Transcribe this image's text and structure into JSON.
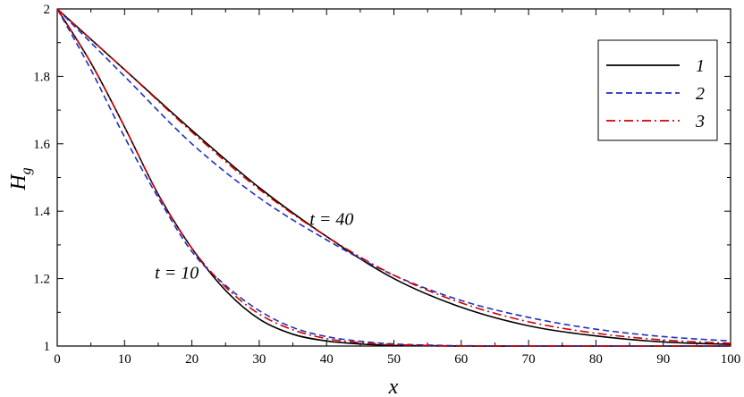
{
  "chart_data": {
    "type": "line",
    "xlabel": "x",
    "ylabel_main": "H",
    "ylabel_sub": "g",
    "xlim": [
      0,
      100
    ],
    "ylim": [
      1,
      2
    ],
    "xticks": [
      0,
      10,
      20,
      30,
      40,
      50,
      60,
      70,
      80,
      90,
      100
    ],
    "yticks": [
      1,
      1.2,
      1.4,
      1.6,
      1.8,
      2
    ],
    "ytick_labels": [
      "1",
      "1.2",
      "1.4",
      "1.6",
      "1.8",
      "2"
    ],
    "grid": false,
    "legend_position": "top-right",
    "colors": {
      "s1": "#000000",
      "s2": "#1f2fbf",
      "s3": "#d40000"
    },
    "legend": [
      {
        "label": "1",
        "style": "solid",
        "color": "#000000"
      },
      {
        "label": "2",
        "style": "dashed",
        "color": "#1f2fbf"
      },
      {
        "label": "3",
        "style": "dashdot",
        "color": "#d40000"
      }
    ],
    "annotations": [
      {
        "text": "t = 40",
        "x": 37.5,
        "y": 1.36
      },
      {
        "text": "t = 10",
        "x": 14.5,
        "y": 1.2
      }
    ],
    "series": [
      {
        "label": "1",
        "group": "t = 10",
        "x": [
          0,
          5,
          10,
          15,
          20,
          25,
          30,
          35,
          40,
          45,
          50,
          55,
          60,
          70,
          80,
          90,
          100
        ],
        "y": [
          2,
          1.84,
          1.65,
          1.45,
          1.29,
          1.165,
          1.08,
          1.035,
          1.015,
          1.006,
          1.002,
          1.001,
          1.0,
          1.0,
          1.0,
          1.0,
          1.0
        ]
      },
      {
        "label": "2",
        "group": "t = 10",
        "x": [
          0,
          5,
          10,
          15,
          20,
          25,
          30,
          35,
          40,
          45,
          50,
          55,
          60,
          70,
          80,
          90,
          100
        ],
        "y": [
          2,
          1.82,
          1.62,
          1.44,
          1.28,
          1.18,
          1.105,
          1.055,
          1.028,
          1.014,
          1.006,
          1.003,
          1.001,
          1.0,
          1.0,
          1.0,
          1.0
        ]
      },
      {
        "label": "3",
        "group": "t = 10",
        "x": [
          0,
          5,
          10,
          15,
          20,
          25,
          30,
          35,
          40,
          45,
          50,
          55,
          60,
          70,
          80,
          90,
          100
        ],
        "y": [
          2,
          1.84,
          1.65,
          1.45,
          1.29,
          1.175,
          1.095,
          1.048,
          1.022,
          1.01,
          1.004,
          1.002,
          1.0,
          1.0,
          1.0,
          1.0,
          1.0
        ]
      },
      {
        "label": "1",
        "group": "t = 40",
        "x": [
          0,
          10,
          20,
          30,
          40,
          50,
          60,
          70,
          80,
          90,
          100
        ],
        "y": [
          2,
          1.82,
          1.64,
          1.47,
          1.325,
          1.2,
          1.115,
          1.06,
          1.03,
          1.012,
          1.005
        ]
      },
      {
        "label": "2",
        "group": "t = 40",
        "x": [
          0,
          10,
          20,
          30,
          40,
          50,
          60,
          70,
          80,
          90,
          100
        ],
        "y": [
          2,
          1.8,
          1.6,
          1.44,
          1.315,
          1.21,
          1.135,
          1.085,
          1.05,
          1.028,
          1.015
        ]
      },
      {
        "label": "3",
        "group": "t = 40",
        "x": [
          0,
          10,
          20,
          30,
          40,
          50,
          60,
          70,
          80,
          90,
          100
        ],
        "y": [
          2,
          1.82,
          1.635,
          1.465,
          1.325,
          1.21,
          1.128,
          1.072,
          1.038,
          1.018,
          1.008
        ]
      }
    ]
  }
}
